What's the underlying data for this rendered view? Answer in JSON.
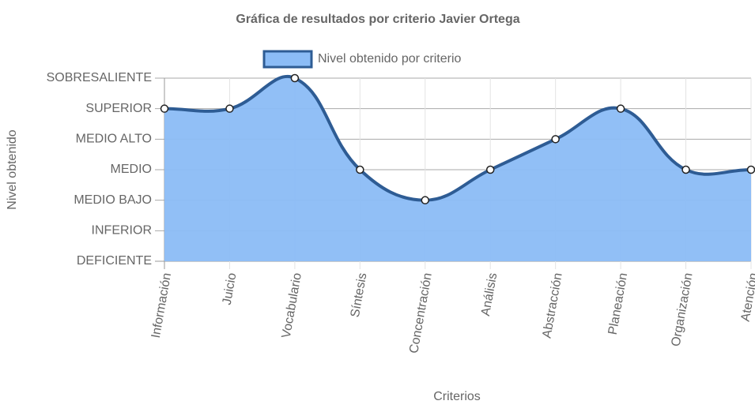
{
  "chart_data": {
    "type": "line",
    "title": "Gráfica de resultados por criterio Javier Ortega",
    "x_label": "Criterios",
    "y_label": "Nivel obtenido",
    "categories": [
      "Información",
      "Juicio",
      "Vocabulario",
      "Síntesis",
      "Concentración",
      "Análisis",
      "Abstracción",
      "Planeación",
      "Organización",
      "Atención"
    ],
    "series": [
      {
        "name": "Nivel obtenido por criterio",
        "color": "#2e5c94",
        "fill": "#8bbcf6",
        "values": [
          5,
          5,
          6,
          3,
          2,
          3,
          4,
          5,
          3,
          3
        ]
      }
    ],
    "ylim": [
      0,
      6
    ],
    "yticks": [
      {
        "value": 0,
        "label": "DEFICIENTE"
      },
      {
        "value": 1,
        "label": "INFERIOR"
      },
      {
        "value": 2,
        "label": "MEDIO BAJO"
      },
      {
        "value": 3,
        "label": "MEDIO"
      },
      {
        "value": 4,
        "label": "MEDIO ALTO"
      },
      {
        "value": 5,
        "label": "SUPERIOR"
      },
      {
        "value": 6,
        "label": "SOBRESALIENTE"
      }
    ],
    "grid": true,
    "legend": "top"
  }
}
